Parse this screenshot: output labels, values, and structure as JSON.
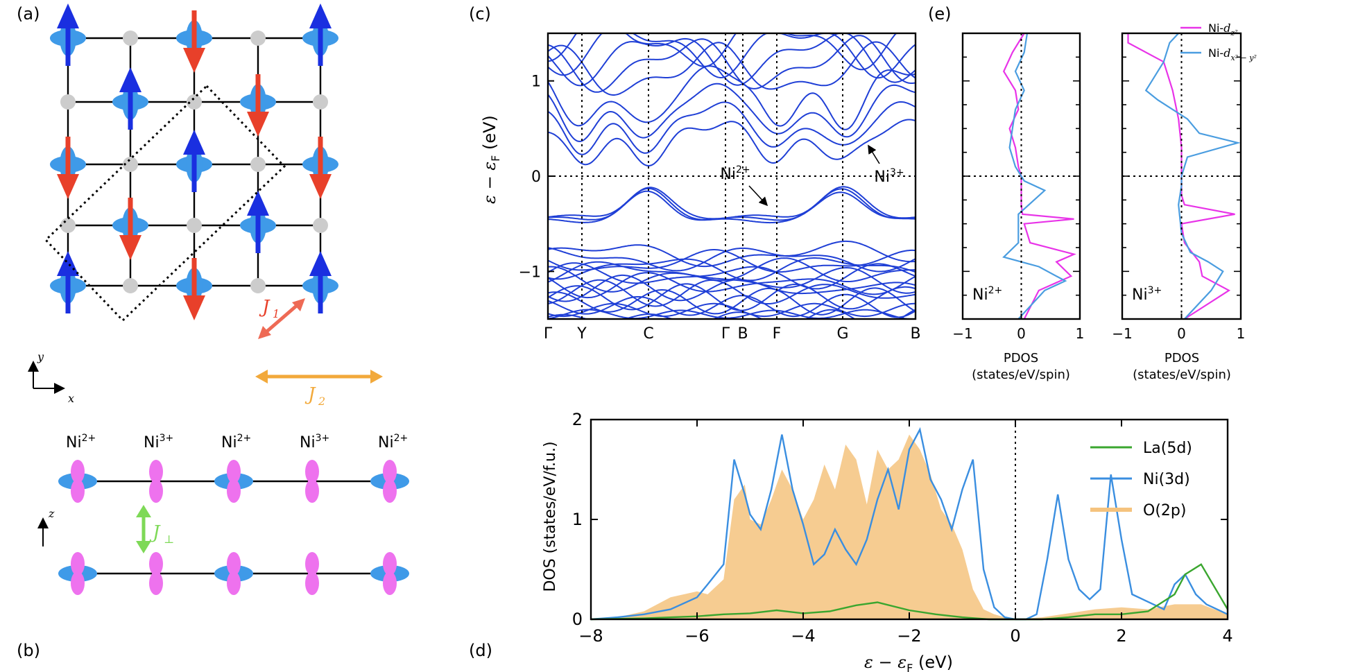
{
  "panels": {
    "a": "(a)",
    "b": "(b)",
    "c": "(c)",
    "d": "(d)",
    "e": "(e)"
  },
  "panel_a": {
    "axis_x": "x",
    "axis_y": "y",
    "j1_letter": "J",
    "j1_sub": "1",
    "j2_letter": "J",
    "j2_sub": "2",
    "colors": {
      "up": "#1a2fe0",
      "down": "#e8402a",
      "orbital": "#3f9ae8",
      "oxygen": "#cccccc",
      "j1": "#ee6a55",
      "j2": "#f2a93b"
    }
  },
  "panel_b": {
    "axis_z": "z",
    "ions": [
      {
        "base": "Ni",
        "charge": "2+"
      },
      {
        "base": "Ni",
        "charge": "3+"
      },
      {
        "base": "Ni",
        "charge": "2+"
      },
      {
        "base": "Ni",
        "charge": "3+"
      },
      {
        "base": "Ni",
        "charge": "2+"
      }
    ],
    "jperp_letter": "J",
    "jperp_sub": "⊥",
    "colors": {
      "dz2": "#ee72ee",
      "dx2y2": "#3f9ae8",
      "jperp": "#7ed957"
    }
  },
  "chart_data": [
    {
      "id": "c",
      "type": "line",
      "title": "",
      "ylabel": "ε − ε",
      "ylabel_sub": "F",
      "ylabel_unit": "(eV)",
      "ylim": [
        -1.5,
        1.5
      ],
      "yticks": [
        "−1",
        "0",
        "1"
      ],
      "kpath": [
        "Γ",
        "Y",
        "C",
        "Γ",
        "B",
        "F",
        "G",
        "B"
      ],
      "annotations": [
        {
          "base": "Ni",
          "charge": "2+"
        },
        {
          "base": "Ni",
          "charge": "3+"
        }
      ],
      "color": "#1f3fd6"
    },
    {
      "id": "d",
      "type": "area",
      "xlabel": "ε − ε",
      "xlabel_sub": "F",
      "xlabel_unit": "(eV)",
      "ylabel": "DOS (states/eV/f.u.)",
      "xlim": [
        -8,
        4
      ],
      "ylim": [
        0,
        2
      ],
      "xticks": [
        "−8",
        "−6",
        "−4",
        "−2",
        "0",
        "2",
        "4"
      ],
      "yticks": [
        "0",
        "1",
        "2"
      ],
      "series": [
        {
          "name": "La(5d)",
          "prefix": "La(",
          "orb": "5d",
          "suffix": ")",
          "color": "#3aa62f",
          "x": [
            -8,
            -7,
            -6,
            -5.5,
            -5,
            -4.5,
            -4,
            -3.5,
            -3,
            -2.6,
            -2,
            -1.5,
            -1,
            -0.5,
            0,
            0.5,
            1,
            1.5,
            2,
            2.5,
            3,
            3.2,
            3.5,
            4
          ],
          "values": [
            0,
            0.01,
            0.03,
            0.05,
            0.06,
            0.09,
            0.06,
            0.08,
            0.14,
            0.17,
            0.09,
            0.05,
            0.02,
            0,
            0,
            0,
            0.02,
            0.05,
            0.05,
            0.08,
            0.25,
            0.45,
            0.55,
            0.1
          ]
        },
        {
          "name": "Ni(3d)",
          "prefix": "Ni(",
          "orb": "3d",
          "suffix": ")",
          "color": "#3a8ee0",
          "x": [
            -8,
            -7.5,
            -7,
            -6.5,
            -6,
            -5.8,
            -5.5,
            -5.3,
            -5.1,
            -5,
            -4.8,
            -4.6,
            -4.4,
            -4.2,
            -4,
            -3.8,
            -3.6,
            -3.4,
            -3.2,
            -3,
            -2.8,
            -2.6,
            -2.4,
            -2.2,
            -2,
            -1.8,
            -1.6,
            -1.4,
            -1.2,
            -1,
            -0.8,
            -0.6,
            -0.4,
            -0.2,
            0,
            0.2,
            0.4,
            0.6,
            0.8,
            1,
            1.2,
            1.4,
            1.6,
            1.8,
            2,
            2.2,
            2.4,
            2.6,
            2.8,
            3,
            3.2,
            3.4,
            3.6,
            3.8,
            4
          ],
          "values": [
            0,
            0.02,
            0.05,
            0.1,
            0.22,
            0.35,
            0.55,
            1.6,
            1.25,
            1.05,
            0.9,
            1.3,
            1.85,
            1.3,
            0.95,
            0.55,
            0.65,
            0.9,
            0.7,
            0.55,
            0.8,
            1.2,
            1.5,
            1.1,
            1.7,
            1.9,
            1.4,
            1.2,
            0.9,
            1.3,
            1.6,
            0.5,
            0.12,
            0.02,
            0,
            0,
            0.05,
            0.6,
            1.25,
            0.6,
            0.3,
            0.2,
            0.3,
            1.45,
            0.8,
            0.25,
            0.2,
            0.15,
            0.1,
            0.35,
            0.45,
            0.25,
            0.15,
            0.1,
            0.05
          ]
        },
        {
          "name": "O(2p)",
          "prefix": "O(",
          "orb": "2p",
          "suffix": ")",
          "color": "#f5c37e",
          "x": [
            -8,
            -7.5,
            -7,
            -6.5,
            -6,
            -5.8,
            -5.5,
            -5.3,
            -5.1,
            -5,
            -4.8,
            -4.6,
            -4.4,
            -4.2,
            -4,
            -3.8,
            -3.6,
            -3.4,
            -3.2,
            -3,
            -2.8,
            -2.6,
            -2.4,
            -2.2,
            -2,
            -1.8,
            -1.6,
            -1.4,
            -1.2,
            -1,
            -0.8,
            -0.6,
            -0.4,
            -0.2,
            0,
            0.5,
            1,
            1.5,
            2,
            2.5,
            3,
            3.5,
            4
          ],
          "values": [
            0,
            0.02,
            0.08,
            0.22,
            0.28,
            0.25,
            0.4,
            1.2,
            1.35,
            1.0,
            0.95,
            1.2,
            1.5,
            1.3,
            1.0,
            1.2,
            1.55,
            1.3,
            1.75,
            1.6,
            1.15,
            1.7,
            1.5,
            1.6,
            1.85,
            1.7,
            1.45,
            1.1,
            0.95,
            0.7,
            0.3,
            0.1,
            0.05,
            0.02,
            0,
            0.02,
            0.06,
            0.1,
            0.12,
            0.1,
            0.15,
            0.15,
            0.05
          ]
        }
      ]
    },
    {
      "id": "e1",
      "type": "line",
      "xlabel_line1": "PDOS",
      "xlabel_line2": "(states/eV/spin)",
      "xlim": [
        -1,
        1
      ],
      "ylim": [
        -1.5,
        1.5
      ],
      "xticks": [
        "−1",
        "0",
        "1"
      ],
      "ion": {
        "base": "Ni",
        "charge": "2+"
      },
      "series": [
        {
          "name": "Ni-dz2",
          "color": "#e833e8",
          "y": [
            -1.5,
            -1.2,
            -1.05,
            -0.9,
            -0.82,
            -0.7,
            -0.5,
            -0.45,
            -0.4,
            -0.3,
            -0.15,
            0,
            0.1,
            0.3,
            0.5,
            0.7,
            0.9,
            1.1,
            1.3,
            1.5
          ],
          "values": [
            0.05,
            0.3,
            0.85,
            0.6,
            0.9,
            0.15,
            0.05,
            0.9,
            0.02,
            0,
            0,
            0,
            -0.05,
            -0.1,
            -0.2,
            -0.05,
            -0.1,
            -0.3,
            -0.15,
            0.05
          ]
        },
        {
          "name": "Ni-dx2-y2",
          "color": "#4a9de0",
          "y": [
            -1.5,
            -1.2,
            -1.1,
            -0.95,
            -0.85,
            -0.7,
            -0.4,
            -0.15,
            -0.05,
            0,
            0.1,
            0.3,
            0.5,
            0.7,
            0.9,
            1.1,
            1.3,
            1.5
          ],
          "values": [
            -0.05,
            0.4,
            0.75,
            0.3,
            -0.3,
            -0.05,
            -0.05,
            0.4,
            0.05,
            0,
            -0.1,
            -0.2,
            -0.15,
            -0.1,
            0.05,
            -0.1,
            0.05,
            0.1
          ]
        }
      ]
    },
    {
      "id": "e2",
      "type": "line",
      "xlabel_line1": "PDOS",
      "xlabel_line2": "(states/eV/spin)",
      "xlim": [
        -1,
        1
      ],
      "ylim": [
        -1.5,
        1.5
      ],
      "xticks": [
        "−1",
        "0",
        "1"
      ],
      "ion": {
        "base": "Ni",
        "charge": "3+"
      },
      "legend": [
        {
          "prefix": "Ni-",
          "orb": "d",
          "sub": "z²",
          "color": "#e833e8"
        },
        {
          "prefix": "Ni-",
          "orb": "d",
          "sub": "x² − y²",
          "color": "#4a9de0"
        }
      ],
      "series": [
        {
          "name": "Ni-dz2",
          "color": "#e833e8",
          "y": [
            -1.5,
            -1.2,
            -1.05,
            -0.9,
            -0.7,
            -0.5,
            -0.4,
            -0.3,
            -0.2,
            -0.1,
            0,
            0.3,
            0.6,
            0.9,
            1.2,
            1.4,
            1.5
          ],
          "values": [
            0.05,
            0.8,
            0.35,
            0.3,
            0.05,
            0,
            0.9,
            0.05,
            0,
            0,
            0,
            0,
            -0.05,
            -0.15,
            -0.3,
            -0.9,
            -0.9
          ]
        },
        {
          "name": "Ni-dx2-y2",
          "color": "#4a9de0",
          "y": [
            -1.5,
            -1.2,
            -1.0,
            -0.9,
            -0.8,
            -0.6,
            -0.3,
            -0.1,
            0,
            0.2,
            0.35,
            0.45,
            0.6,
            0.8,
            0.9,
            1.0,
            1.2,
            1.4,
            1.5
          ],
          "values": [
            0.05,
            0.5,
            0.7,
            0.45,
            0.15,
            0,
            -0.05,
            0,
            0,
            0.1,
            0.95,
            0.3,
            0.1,
            -0.4,
            -0.6,
            -0.5,
            -0.3,
            -0.2,
            -0.05
          ]
        }
      ]
    }
  ]
}
